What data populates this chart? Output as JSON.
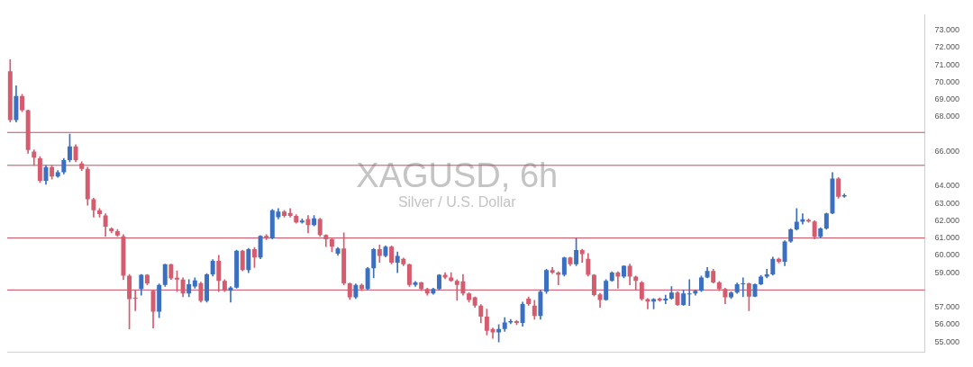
{
  "chart_data": {
    "type": "candlestick",
    "title": "XAGUSD, 6h",
    "subtitle": "Silver / U.S. Dollar",
    "categories": [
      null,
      null,
      null,
      null,
      null,
      null,
      null,
      null,
      null,
      null,
      null,
      null,
      null,
      null,
      null,
      null,
      null,
      null,
      null,
      null,
      null,
      null,
      null,
      null,
      null,
      null,
      null,
      null,
      null,
      null,
      null,
      null,
      null,
      null,
      null,
      null,
      null,
      null,
      null,
      null,
      null,
      null,
      null,
      null,
      null,
      null,
      null,
      null,
      null,
      null,
      null,
      null,
      null,
      null,
      null,
      null,
      null,
      null,
      null,
      null,
      null,
      null,
      null,
      null,
      null,
      null,
      null,
      null,
      null,
      null,
      null,
      null,
      null,
      null,
      null,
      null,
      null,
      null,
      null,
      null,
      null,
      null,
      null,
      null,
      null,
      null,
      null,
      null,
      null,
      null,
      null,
      null,
      null,
      null,
      null,
      null,
      null,
      null,
      null,
      null,
      null,
      null,
      null,
      null,
      null,
      null,
      null,
      null,
      null,
      null,
      null,
      null,
      null,
      null,
      null,
      null,
      null,
      null,
      null,
      null,
      null,
      null,
      null,
      null,
      null,
      null,
      null,
      null,
      null,
      null,
      null,
      null,
      null,
      null,
      null,
      null,
      null,
      null,
      null,
      null,
      null,
      null,
      null,
      null,
      null,
      null,
      null,
      null,
      null,
      null,
      null,
      null,
      null,
      null
    ],
    "ohlc": [
      [
        70.64,
        71.3,
        67.7,
        67.81
      ],
      [
        67.81,
        69.8,
        67.7,
        69.2
      ],
      [
        69.2,
        69.3,
        68.3,
        68.38
      ],
      [
        68.38,
        68.4,
        65.9,
        66.08
      ],
      [
        66.0,
        66.1,
        65.2,
        65.65
      ],
      [
        65.6,
        65.7,
        64.2,
        64.3
      ],
      [
        64.3,
        65.2,
        64.1,
        65.1
      ],
      [
        65.1,
        65.2,
        64.4,
        64.55
      ],
      [
        64.55,
        64.9,
        64.5,
        64.8
      ],
      [
        64.8,
        65.6,
        64.7,
        65.5
      ],
      [
        65.5,
        67.0,
        65.4,
        66.3
      ],
      [
        66.3,
        66.4,
        65.4,
        65.5
      ],
      [
        65.3,
        65.4,
        64.9,
        65.0
      ],
      [
        65.0,
        65.1,
        62.9,
        63.24
      ],
      [
        63.24,
        63.3,
        62.2,
        62.6
      ],
      [
        62.6,
        62.7,
        62.2,
        62.38
      ],
      [
        62.3,
        62.4,
        61.1,
        61.65
      ],
      [
        61.55,
        61.6,
        61.3,
        61.4
      ],
      [
        61.4,
        61.5,
        61.1,
        61.15
      ],
      [
        61.1,
        61.2,
        58.6,
        58.82
      ],
      [
        58.82,
        58.9,
        55.75,
        57.47
      ],
      [
        57.55,
        58.0,
        56.8,
        57.5
      ],
      [
        58.05,
        58.9,
        57.7,
        58.87
      ],
      [
        58.87,
        58.9,
        58.3,
        58.38
      ],
      [
        57.95,
        58.0,
        55.8,
        56.75
      ],
      [
        56.75,
        58.35,
        56.4,
        58.29
      ],
      [
        58.29,
        59.5,
        58.2,
        59.49
      ],
      [
        59.49,
        59.5,
        58.6,
        58.67
      ],
      [
        58.7,
        59.1,
        57.9,
        58.6
      ],
      [
        58.6,
        58.7,
        57.6,
        57.8
      ],
      [
        57.8,
        58.6,
        57.6,
        58.33
      ],
      [
        58.2,
        58.7,
        58.1,
        58.55
      ],
      [
        58.4,
        58.45,
        57.3,
        57.37
      ],
      [
        57.37,
        58.95,
        57.3,
        58.9
      ],
      [
        58.9,
        59.75,
        58.8,
        59.68
      ],
      [
        59.68,
        60.0,
        57.9,
        58.53
      ],
      [
        58.53,
        58.6,
        57.9,
        57.95
      ],
      [
        57.95,
        58.2,
        57.3,
        58.14
      ],
      [
        58.14,
        60.3,
        58.1,
        60.26
      ],
      [
        60.26,
        60.3,
        59.1,
        59.15
      ],
      [
        59.15,
        60.4,
        59.0,
        60.35
      ],
      [
        60.35,
        60.45,
        59.3,
        59.87
      ],
      [
        59.87,
        61.15,
        59.8,
        61.12
      ],
      [
        61.12,
        61.2,
        60.9,
        60.98
      ],
      [
        60.98,
        62.65,
        60.95,
        62.6
      ],
      [
        62.2,
        62.7,
        62.1,
        62.52
      ],
      [
        62.52,
        62.6,
        62.2,
        62.28
      ],
      [
        62.45,
        62.7,
        62.2,
        62.28
      ],
      [
        62.28,
        62.35,
        61.85,
        61.9
      ],
      [
        61.9,
        62.1,
        61.85,
        62.0
      ],
      [
        62.1,
        62.3,
        61.3,
        61.75
      ],
      [
        61.75,
        62.3,
        61.7,
        62.14
      ],
      [
        62.1,
        62.15,
        61.1,
        61.17
      ],
      [
        61.17,
        61.2,
        60.5,
        60.93
      ],
      [
        60.93,
        61.0,
        60.2,
        60.5
      ],
      [
        60.1,
        60.45,
        60.0,
        60.4
      ],
      [
        60.4,
        61.3,
        58.3,
        58.38
      ],
      [
        58.38,
        58.4,
        57.45,
        57.57
      ],
      [
        57.57,
        58.35,
        57.5,
        58.29
      ],
      [
        58.29,
        58.35,
        57.95,
        58.05
      ],
      [
        58.05,
        59.3,
        58.0,
        59.25
      ],
      [
        59.25,
        60.4,
        58.7,
        60.35
      ],
      [
        60.35,
        60.6,
        59.6,
        59.97
      ],
      [
        59.97,
        60.55,
        59.9,
        60.5
      ],
      [
        60.5,
        60.55,
        59.5,
        59.58
      ],
      [
        59.58,
        60.2,
        59.0,
        59.97
      ],
      [
        59.8,
        59.85,
        59.4,
        59.49
      ],
      [
        59.49,
        59.5,
        58.2,
        58.29
      ],
      [
        58.29,
        58.5,
        58.2,
        58.43
      ],
      [
        58.43,
        58.45,
        57.95,
        58.05
      ],
      [
        58.05,
        58.1,
        57.7,
        57.8
      ],
      [
        57.8,
        58.1,
        57.75,
        58.05
      ],
      [
        58.05,
        58.9,
        58.0,
        58.87
      ],
      [
        58.87,
        59.0,
        58.65,
        58.72
      ],
      [
        58.72,
        59.0,
        58.5,
        58.53
      ],
      [
        58.53,
        58.6,
        57.4,
        58.29
      ],
      [
        58.5,
        58.9,
        57.7,
        57.8
      ],
      [
        57.8,
        57.85,
        57.3,
        57.42
      ],
      [
        57.57,
        57.6,
        57.0,
        57.1
      ],
      [
        57.1,
        57.15,
        56.1,
        56.46
      ],
      [
        56.46,
        56.9,
        55.4,
        55.64
      ],
      [
        55.74,
        55.8,
        55.2,
        55.55
      ],
      [
        55.55,
        56.0,
        55.0,
        55.74
      ],
      [
        55.74,
        56.4,
        55.6,
        56.12
      ],
      [
        56.12,
        56.3,
        56.05,
        56.2
      ],
      [
        56.2,
        56.25,
        56.0,
        56.1
      ],
      [
        56.1,
        57.3,
        55.9,
        57.18
      ],
      [
        57.5,
        57.6,
        57.1,
        57.18
      ],
      [
        57.1,
        57.4,
        56.3,
        56.5
      ],
      [
        56.5,
        58.0,
        56.3,
        57.9
      ],
      [
        57.9,
        59.2,
        57.8,
        59.15
      ],
      [
        59.15,
        59.3,
        58.95,
        59.0
      ],
      [
        59.0,
        59.05,
        58.3,
        58.87
      ],
      [
        58.87,
        59.9,
        58.8,
        59.87
      ],
      [
        59.87,
        59.9,
        59.4,
        59.49
      ],
      [
        59.49,
        61.0,
        59.4,
        60.3
      ],
      [
        60.3,
        60.35,
        59.6,
        60.07
      ],
      [
        59.8,
        60.1,
        58.8,
        58.87
      ],
      [
        58.87,
        58.9,
        57.65,
        57.71
      ],
      [
        57.75,
        57.8,
        57.0,
        57.42
      ],
      [
        57.42,
        58.6,
        57.4,
        58.53
      ],
      [
        58.53,
        59.05,
        58.5,
        59.0
      ],
      [
        59.0,
        59.05,
        58.1,
        58.77
      ],
      [
        58.77,
        59.4,
        58.7,
        59.4
      ],
      [
        59.4,
        59.5,
        58.3,
        58.77
      ],
      [
        58.77,
        58.8,
        58.0,
        58.53
      ],
      [
        58.43,
        58.5,
        57.4,
        57.47
      ],
      [
        57.47,
        57.5,
        56.9,
        57.33
      ],
      [
        57.33,
        57.5,
        56.9,
        57.47
      ],
      [
        57.5,
        57.55,
        57.35,
        57.4
      ],
      [
        57.4,
        57.7,
        57.2,
        57.5
      ],
      [
        57.5,
        58.2,
        57.45,
        57.85
      ],
      [
        57.85,
        57.9,
        57.1,
        57.13
      ],
      [
        57.13,
        58.0,
        57.1,
        57.8
      ],
      [
        57.75,
        58.6,
        57.1,
        57.8
      ],
      [
        57.8,
        58.0,
        57.7,
        57.95
      ],
      [
        57.95,
        58.8,
        57.9,
        58.72
      ],
      [
        58.72,
        59.3,
        58.7,
        59.1
      ],
      [
        59.1,
        59.2,
        58.4,
        58.43
      ],
      [
        58.43,
        58.5,
        57.95,
        58.05
      ],
      [
        58.05,
        58.1,
        57.2,
        57.57
      ],
      [
        57.57,
        57.9,
        57.5,
        57.85
      ],
      [
        57.85,
        58.4,
        57.8,
        58.33
      ],
      [
        58.33,
        58.7,
        57.6,
        58.38
      ],
      [
        58.38,
        58.4,
        56.8,
        57.62
      ],
      [
        57.62,
        58.35,
        57.6,
        58.33
      ],
      [
        58.33,
        58.85,
        58.3,
        58.77
      ],
      [
        58.77,
        59.2,
        58.7,
        58.9
      ],
      [
        58.9,
        59.9,
        58.85,
        59.8
      ],
      [
        59.8,
        59.85,
        59.55,
        59.63
      ],
      [
        59.63,
        60.85,
        59.4,
        60.8
      ],
      [
        60.8,
        61.55,
        60.75,
        61.5
      ],
      [
        61.5,
        62.7,
        61.45,
        61.94
      ],
      [
        61.94,
        62.4,
        61.8,
        62.09
      ],
      [
        62.05,
        62.1,
        61.9,
        61.95
      ],
      [
        61.95,
        62.0,
        60.95,
        61.07
      ],
      [
        61.07,
        61.6,
        61.0,
        61.55
      ],
      [
        61.55,
        62.45,
        61.5,
        62.42
      ],
      [
        62.42,
        64.78,
        62.4,
        64.44
      ],
      [
        64.44,
        64.5,
        63.3,
        63.38
      ],
      [
        63.4,
        63.55,
        63.35,
        63.48
      ],
      null,
      null,
      null,
      null,
      null,
      null,
      null,
      null,
      null,
      null,
      null,
      null,
      null
    ],
    "ylim": [
      54.4,
      73.9
    ],
    "yticks": [
      {
        "value": 55,
        "label": "55.000"
      },
      {
        "value": 56,
        "label": "56.000"
      },
      {
        "value": 57,
        "label": "57.000"
      },
      {
        "value": 59,
        "label": "59.000"
      },
      {
        "value": 60,
        "label": "60.000"
      },
      {
        "value": 61,
        "label": "61.000"
      },
      {
        "value": 62,
        "label": "62.000"
      },
      {
        "value": 63,
        "label": "63.000"
      },
      {
        "value": 64,
        "label": "64.000"
      },
      {
        "value": 66,
        "label": "66.000"
      },
      {
        "value": 68,
        "label": "68.000"
      },
      {
        "value": 69,
        "label": "69.000"
      },
      {
        "value": 70,
        "label": "70.000"
      },
      {
        "value": 71,
        "label": "71.000"
      },
      {
        "value": 72,
        "label": "72.000"
      },
      {
        "value": 73,
        "label": "73.000"
      }
    ],
    "ref_lines": [
      {
        "axis": "y",
        "value": 67.1,
        "color": "#c94a5c"
      },
      {
        "axis": "y",
        "value": 65.2,
        "color": "#c94a5c"
      },
      {
        "axis": "y",
        "value": 61.0,
        "color": "#c94a5c"
      },
      {
        "axis": "y",
        "value": 58.0,
        "color": "#c94a5c"
      }
    ],
    "grid": false,
    "legend": false
  }
}
